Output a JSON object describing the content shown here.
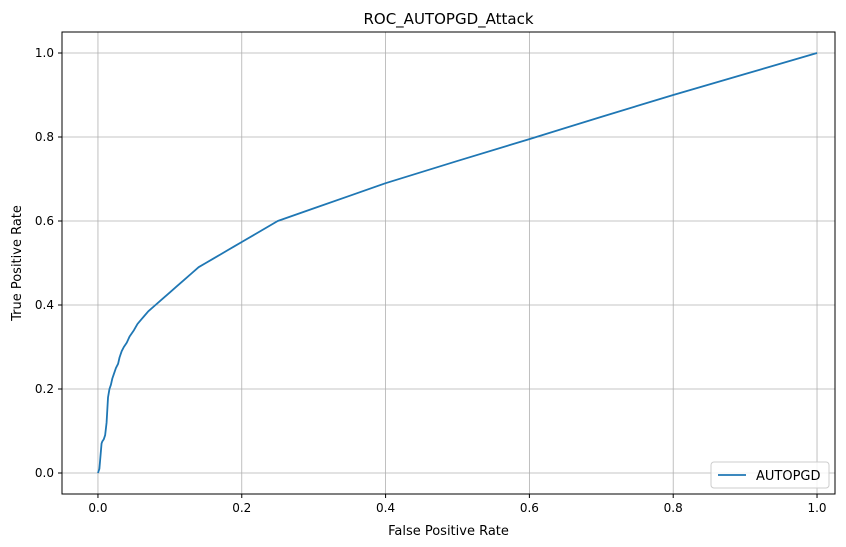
{
  "chart_data": {
    "type": "line",
    "title": "ROC_AUTOPGD_Attack",
    "xlabel": "False Positive Rate",
    "ylabel": "True Positive Rate",
    "xlim": [
      -0.05,
      1.025
    ],
    "ylim": [
      -0.05,
      1.05
    ],
    "xticks": [
      0.0,
      0.2,
      0.4,
      0.6,
      0.8,
      1.0
    ],
    "yticks": [
      0.0,
      0.2,
      0.4,
      0.6,
      0.8,
      1.0
    ],
    "xtick_labels": [
      "0.0",
      "0.2",
      "0.4",
      "0.6",
      "0.8",
      "1.0"
    ],
    "ytick_labels": [
      "0.0",
      "0.2",
      "0.4",
      "0.6",
      "0.8",
      "1.0"
    ],
    "grid": true,
    "legend_position": "lower-right",
    "series": [
      {
        "name": "AUTOPGD",
        "color": "#1f77b4",
        "x": [
          0.0,
          0.002,
          0.003,
          0.004,
          0.005,
          0.006,
          0.008,
          0.01,
          0.012,
          0.013,
          0.014,
          0.015,
          0.016,
          0.018,
          0.02,
          0.022,
          0.025,
          0.028,
          0.03,
          0.033,
          0.036,
          0.04,
          0.044,
          0.05,
          0.055,
          0.06,
          0.065,
          0.07,
          0.08,
          0.09,
          0.1,
          0.11,
          0.12,
          0.13,
          0.14,
          0.15,
          0.16,
          0.17,
          0.18,
          0.19,
          0.2,
          0.22,
          0.25,
          0.3,
          0.35,
          0.4,
          0.5,
          0.6,
          0.7,
          0.8,
          0.9,
          1.0
        ],
        "y": [
          0.0,
          0.01,
          0.03,
          0.05,
          0.07,
          0.075,
          0.08,
          0.09,
          0.12,
          0.15,
          0.18,
          0.19,
          0.2,
          0.21,
          0.225,
          0.235,
          0.25,
          0.26,
          0.275,
          0.29,
          0.3,
          0.31,
          0.325,
          0.34,
          0.355,
          0.365,
          0.375,
          0.385,
          0.4,
          0.415,
          0.43,
          0.445,
          0.46,
          0.475,
          0.49,
          0.5,
          0.51,
          0.52,
          0.53,
          0.54,
          0.55,
          0.57,
          0.6,
          0.63,
          0.66,
          0.69,
          0.743,
          0.795,
          0.848,
          0.9,
          0.95,
          1.0
        ]
      }
    ]
  }
}
